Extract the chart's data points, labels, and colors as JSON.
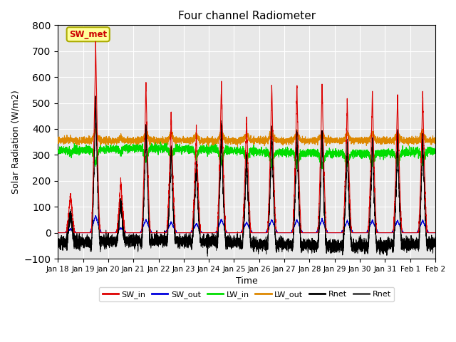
{
  "title": "Four channel Radiometer",
  "xlabel": "Time",
  "ylabel": "Solar Radiation (W/m2)",
  "ylim": [
    -100,
    800
  ],
  "colors": {
    "SW_in": "#dd0000",
    "SW_out": "#0000dd",
    "LW_in": "#00dd00",
    "LW_out": "#dd8800",
    "Rnet1": "#000000",
    "Rnet2": "#444444"
  },
  "x_tick_labels": [
    "Jan 18",
    "Jan 19",
    "Jan 20",
    "Jan 21",
    "Jan 22",
    "Jan 23",
    "Jan 24",
    "Jan 25",
    "Jan 26",
    "Jan 27",
    "Jan 28",
    "Jan 29",
    "Jan 30",
    "Jan 31",
    "Feb 1",
    "Feb 2"
  ],
  "background_color": "#e8e8e8",
  "annotation": "SW_met",
  "annotation_color": "#cc0000",
  "annotation_bbox_fc": "#ffff99",
  "annotation_bbox_ec": "#aaaa00"
}
